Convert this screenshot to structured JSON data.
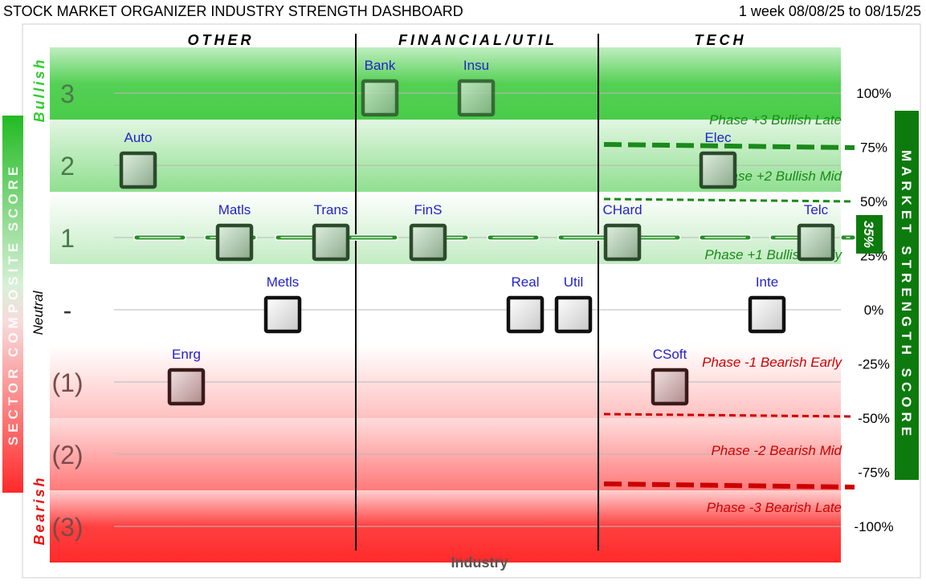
{
  "header": {
    "title": "STOCK MARKET ORGANIZER INDUSTRY STRENGTH DASHBOARD",
    "period": "1 week 08/08/25 to 08/15/25"
  },
  "chart_data": {
    "type": "scatter",
    "title": "STOCK MARKET ORGANIZER INDUSTRY STRENGTH DASHBOARD",
    "xlabel": "Industry",
    "left_axis_label": "SECTOR COMPOSITE SCORE",
    "right_axis_label": "MARKET STRENGTH SCORE",
    "left_side_labels": {
      "bullish": "Bullish",
      "neutral": "Neutral",
      "bearish": "Bearish"
    },
    "sectors": [
      "OTHER",
      "FINANCIAL/UTIL",
      "TECH"
    ],
    "left_ticks": [
      {
        "value": 3,
        "label": "3"
      },
      {
        "value": 2,
        "label": "2"
      },
      {
        "value": 1,
        "label": "1"
      },
      {
        "value": 0,
        "label": "-"
      },
      {
        "value": -1,
        "label": "(1)"
      },
      {
        "value": -2,
        "label": "(2)"
      },
      {
        "value": -3,
        "label": "(3)"
      }
    ],
    "right_ticks": [
      "100%",
      "75%",
      "50%",
      "25%",
      "0%",
      "-25%",
      "-50%",
      "-75%",
      "-100%"
    ],
    "phases": [
      {
        "label": "Phase +3 Bullish Late",
        "color": "#1a8a1a"
      },
      {
        "label": "Phase +2 Bullish Mid",
        "color": "#1a8a1a"
      },
      {
        "label": "Phase +1 Bullish Early",
        "color": "#1a8a1a"
      },
      {
        "label": "Phase -1 Bearish Early",
        "color": "#cc0000"
      },
      {
        "label": "Phase -2 Bearish Mid",
        "color": "#cc0000"
      },
      {
        "label": "Phase -3 Bearish Late",
        "color": "#cc0000"
      }
    ],
    "market_strength": {
      "value": 35,
      "label": "35%"
    },
    "threshold_values": [
      75,
      50,
      -50,
      -75
    ],
    "industries": [
      {
        "name": "Auto",
        "sector": "OTHER",
        "score": 2
      },
      {
        "name": "Matls",
        "sector": "OTHER",
        "score": 1
      },
      {
        "name": "Trans",
        "sector": "OTHER",
        "score": 1
      },
      {
        "name": "Metls",
        "sector": "OTHER",
        "score": 0
      },
      {
        "name": "Enrg",
        "sector": "OTHER",
        "score": -1
      },
      {
        "name": "Bank",
        "sector": "FINANCIAL/UTIL",
        "score": 3
      },
      {
        "name": "Insu",
        "sector": "FINANCIAL/UTIL",
        "score": 3
      },
      {
        "name": "FinS",
        "sector": "FINANCIAL/UTIL",
        "score": 1
      },
      {
        "name": "Real",
        "sector": "FINANCIAL/UTIL",
        "score": 0
      },
      {
        "name": "Util",
        "sector": "FINANCIAL/UTIL",
        "score": 0
      },
      {
        "name": "Elec",
        "sector": "TECH",
        "score": 2
      },
      {
        "name": "CHard",
        "sector": "TECH",
        "score": 1
      },
      {
        "name": "Telc",
        "sector": "TECH",
        "score": 1
      },
      {
        "name": "Inte",
        "sector": "TECH",
        "score": 0
      },
      {
        "name": "CSoft",
        "sector": "TECH",
        "score": -1
      }
    ],
    "colors": {
      "bullish_band": "#3cc83c",
      "bearish_band": "#ff2a2a",
      "label_text": "#2222cc",
      "phase_green": "#1a8a1a",
      "phase_red": "#cc0000",
      "market_badge": "#0d7a0d"
    }
  }
}
